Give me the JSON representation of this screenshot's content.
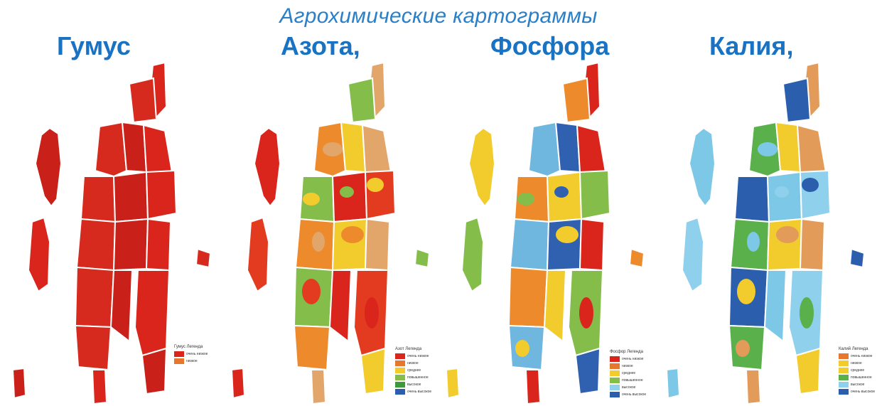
{
  "title": "Агрохимические картограммы",
  "maps": [
    {
      "label": "Гумус",
      "palette": [
        "#d9251c",
        "#d62a1e",
        "#c9211a"
      ],
      "legend": {
        "title": "Гумус Легенда",
        "items": [
          {
            "label": "очень низкое",
            "color": "#d9251c"
          },
          {
            "label": "низкое",
            "color": "#e8772e"
          }
        ]
      }
    },
    {
      "label": "Азота,",
      "palette": [
        "#e23b20",
        "#ed8a2c",
        "#f2cb2c",
        "#e2a56a",
        "#84bd4a",
        "#d9251c"
      ],
      "legend": {
        "title": "Азот Легенда",
        "items": [
          {
            "label": "очень низкое",
            "color": "#d9251c"
          },
          {
            "label": "низкое",
            "color": "#e8772e"
          },
          {
            "label": "среднее",
            "color": "#f2cb2c"
          },
          {
            "label": "повышенное",
            "color": "#84bd4a"
          },
          {
            "label": "высокое",
            "color": "#3c9a3c"
          },
          {
            "label": "очень высокое",
            "color": "#2b5fae"
          }
        ]
      }
    },
    {
      "label": "Фосфора",
      "palette": [
        "#d9251c",
        "#ed8a2c",
        "#f2cb2c",
        "#84bd4a",
        "#6fb7de",
        "#3060b0"
      ],
      "legend": {
        "title": "Фосфор Легенда",
        "items": [
          {
            "label": "очень низкое",
            "color": "#d9251c"
          },
          {
            "label": "низкое",
            "color": "#e8772e"
          },
          {
            "label": "среднее",
            "color": "#f2cb2c"
          },
          {
            "label": "повышенное",
            "color": "#84bd4a"
          },
          {
            "label": "высокое",
            "color": "#8fd0ec"
          },
          {
            "label": "очень высокое",
            "color": "#2b5fae"
          }
        ]
      }
    },
    {
      "label": "Калия,",
      "palette": [
        "#8fd0ec",
        "#5ab04a",
        "#f2cb2c",
        "#e39b5a",
        "#2b5fae",
        "#7cc8e6"
      ],
      "legend": {
        "title": "Калий Легенда",
        "items": [
          {
            "label": "очень низкое",
            "color": "#e8772e"
          },
          {
            "label": "низкое",
            "color": "#f2cb2c"
          },
          {
            "label": "среднее",
            "color": "#f2cb2c"
          },
          {
            "label": "повышенное",
            "color": "#5ab04a"
          },
          {
            "label": "высокое",
            "color": "#8fd0ec"
          },
          {
            "label": "очень высокое",
            "color": "#2b5fae"
          }
        ]
      }
    }
  ]
}
